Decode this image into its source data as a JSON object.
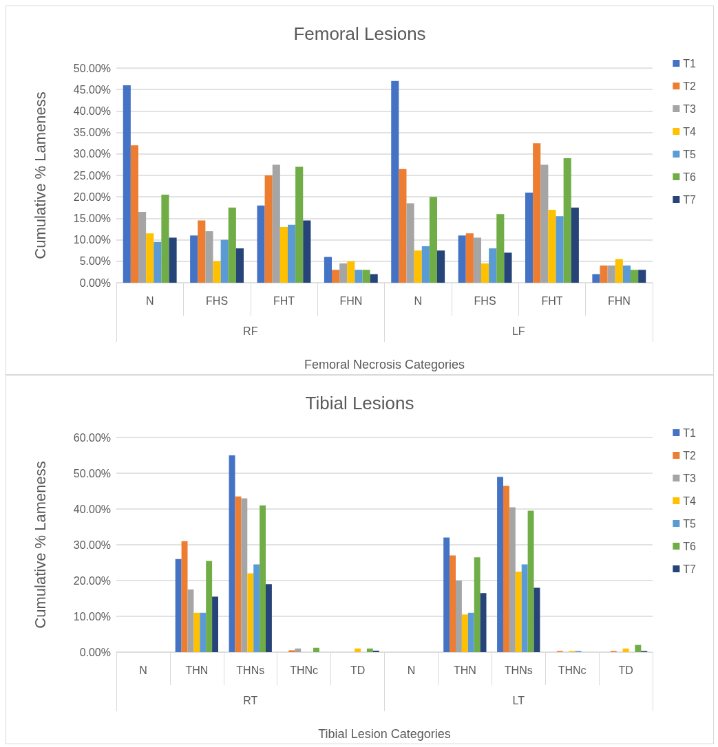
{
  "chart_data": [
    {
      "type": "bar",
      "title": "Femoral Lesions",
      "xlabel": "Femoral Necrosis Categories",
      "ylabel": "Cumulative % Lameness",
      "categories": [
        "N",
        "FHS",
        "FHT",
        "FHN",
        "N",
        "FHS",
        "FHT",
        "FHN"
      ],
      "annotations": [
        "RF",
        "LF"
      ],
      "series": [
        {
          "name": "T1",
          "color": "#4472c4",
          "values": [
            46,
            11,
            18,
            6,
            47,
            11,
            21,
            2
          ]
        },
        {
          "name": "T2",
          "color": "#ed7d31",
          "values": [
            32,
            14.5,
            25,
            3,
            26.5,
            11.5,
            32.5,
            4
          ]
        },
        {
          "name": "T3",
          "color": "#a5a5a5",
          "values": [
            16.5,
            12,
            27.5,
            4.5,
            18.5,
            10.5,
            27.5,
            4
          ]
        },
        {
          "name": "T4",
          "color": "#ffc000",
          "values": [
            11.5,
            5,
            13,
            5,
            7.5,
            4.5,
            17,
            5.5
          ]
        },
        {
          "name": "T5",
          "color": "#5b9bd5",
          "values": [
            9.5,
            10,
            13.5,
            3,
            8.5,
            8,
            15.5,
            4
          ]
        },
        {
          "name": "T6",
          "color": "#70ad47",
          "values": [
            20.5,
            17.5,
            27,
            3,
            20,
            16,
            29,
            3
          ]
        },
        {
          "name": "T7",
          "color": "#264478",
          "values": [
            10.5,
            8,
            14.5,
            2,
            7.5,
            7,
            17.5,
            3
          ]
        }
      ],
      "ylim": [
        0,
        50
      ],
      "yticks": [
        {
          "value": 0,
          "label": "0.00%"
        },
        {
          "value": 5,
          "label": "5.00%"
        },
        {
          "value": 10,
          "label": "10.00%"
        },
        {
          "value": 15,
          "label": "15.00%"
        },
        {
          "value": 20,
          "label": "20.00%"
        },
        {
          "value": 25,
          "label": "25.00%"
        },
        {
          "value": 30,
          "label": "30.00%"
        },
        {
          "value": 35,
          "label": "35.00%"
        },
        {
          "value": 40,
          "label": "40.00%"
        },
        {
          "value": 45,
          "label": "45.00%"
        },
        {
          "value": 50,
          "label": "50.00%"
        }
      ],
      "grid": "y",
      "legend": "right"
    },
    {
      "type": "bar",
      "title": "Tibial Lesions",
      "xlabel": "Tibial Lesion Categories",
      "ylabel": "Cumulative % Lameness",
      "categories": [
        "N",
        "THN",
        "THNs",
        "THNc",
        "TD",
        "N",
        "THN",
        "THNs",
        "THNc",
        "TD"
      ],
      "annotations": [
        "RT",
        "LT"
      ],
      "series": [
        {
          "name": "T1",
          "color": "#4472c4",
          "values": [
            0,
            26,
            55,
            0,
            0,
            0,
            32,
            49,
            0,
            0
          ]
        },
        {
          "name": "T2",
          "color": "#ed7d31",
          "values": [
            0,
            31,
            43.5,
            0.5,
            0,
            0,
            27,
            46.5,
            0.3,
            0.3
          ]
        },
        {
          "name": "T3",
          "color": "#a5a5a5",
          "values": [
            0,
            17.5,
            43,
            1,
            0,
            0,
            20,
            40.5,
            0,
            0
          ]
        },
        {
          "name": "T4",
          "color": "#ffc000",
          "values": [
            0,
            11,
            22,
            0,
            1,
            0,
            10.5,
            22.5,
            0.3,
            1
          ]
        },
        {
          "name": "T5",
          "color": "#5b9bd5",
          "values": [
            0,
            11,
            24.5,
            0,
            0,
            0,
            11,
            24.5,
            0.3,
            0
          ]
        },
        {
          "name": "T6",
          "color": "#70ad47",
          "values": [
            0,
            25.5,
            41,
            1.2,
            1,
            0,
            26.5,
            39.5,
            0,
            2
          ]
        },
        {
          "name": "T7",
          "color": "#264478",
          "values": [
            0,
            15.5,
            19,
            0,
            0.4,
            0,
            16.5,
            18,
            0,
            0.3
          ]
        }
      ],
      "ylim": [
        0,
        60
      ],
      "yticks": [
        {
          "value": 0,
          "label": "0.00%"
        },
        {
          "value": 10,
          "label": "10.00%"
        },
        {
          "value": 20,
          "label": "20.00%"
        },
        {
          "value": 30,
          "label": "30.00%"
        },
        {
          "value": 40,
          "label": "40.00%"
        },
        {
          "value": 50,
          "label": "50.00%"
        },
        {
          "value": 60,
          "label": "60.00%"
        }
      ],
      "grid": "y",
      "legend": "right"
    }
  ]
}
